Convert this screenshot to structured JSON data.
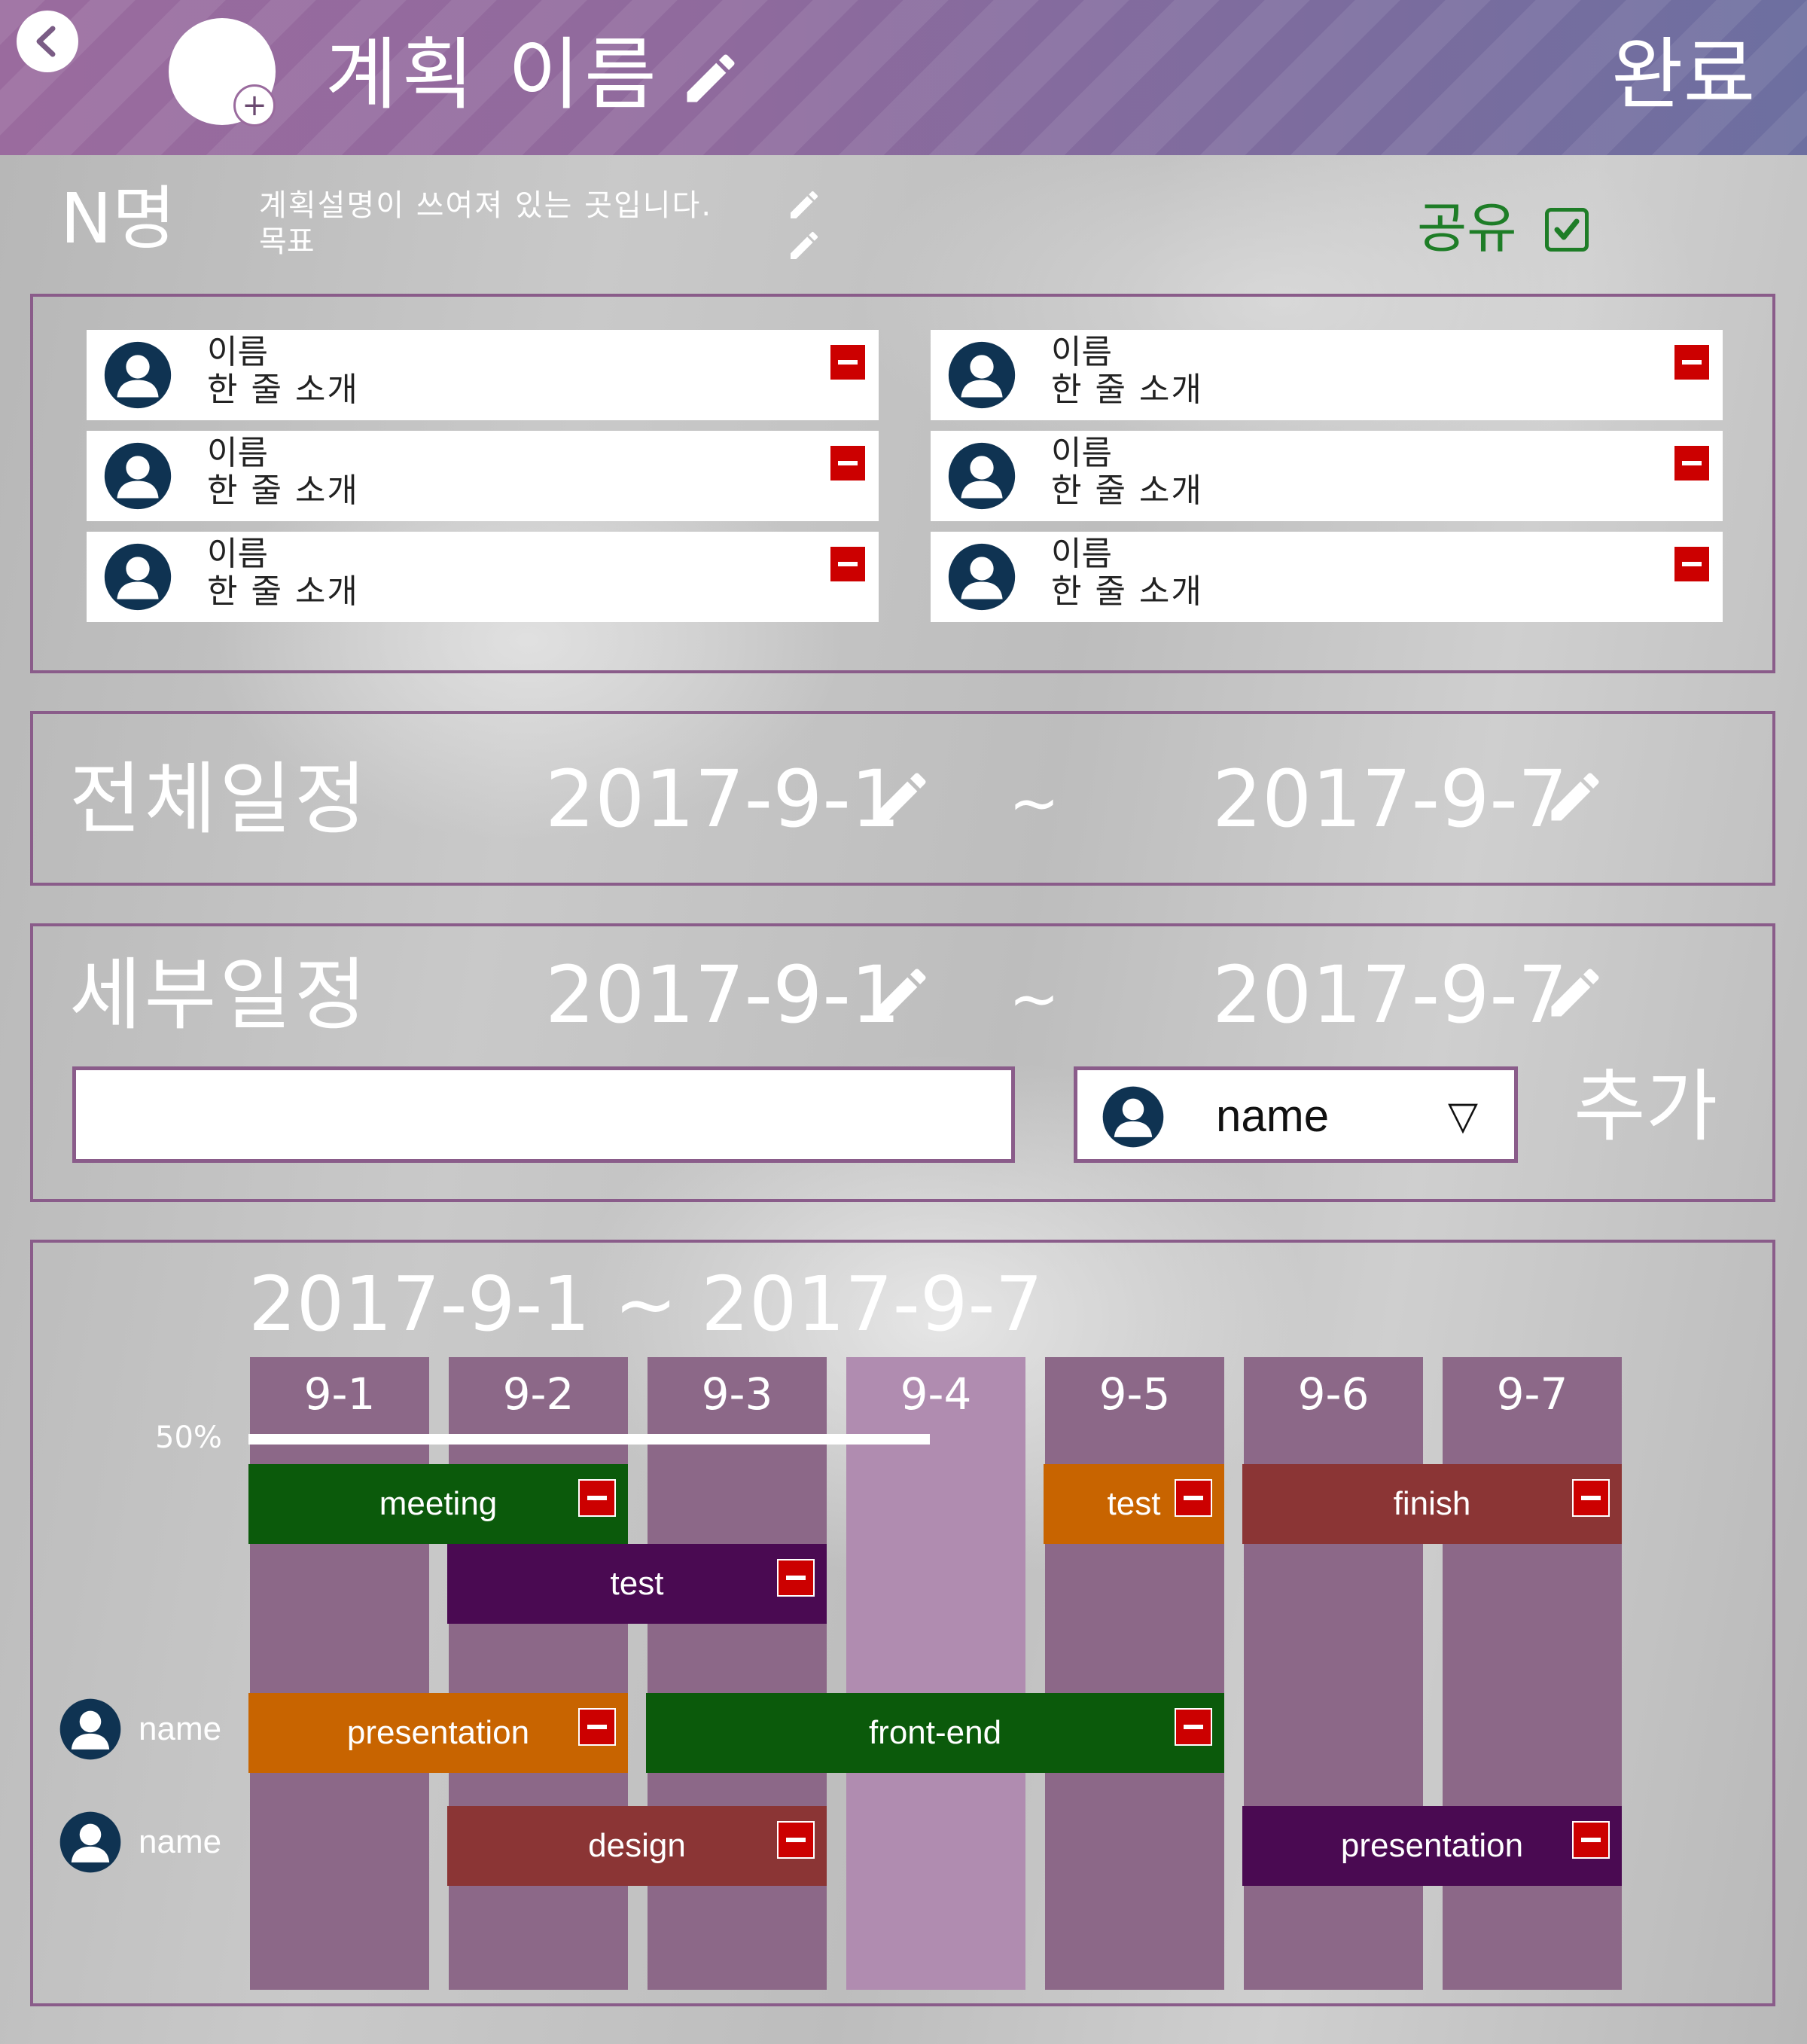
{
  "header": {
    "title": "계획 이름",
    "done_label": "완료",
    "back_icon": "chevron-left-icon",
    "edit_icon": "pencil-icon"
  },
  "summary": {
    "member_count": "N명",
    "description": "계획설명이 쓰여져 있는 곳입니다.",
    "goal": "목표",
    "share_label": "공유",
    "share_checked": true
  },
  "members": [
    {
      "name": "이름",
      "intro": "한 줄 소개"
    },
    {
      "name": "이름",
      "intro": "한 줄 소개"
    },
    {
      "name": "이름",
      "intro": "한 줄 소개"
    },
    {
      "name": "이름",
      "intro": "한 줄 소개"
    },
    {
      "name": "이름",
      "intro": "한 줄 소개"
    },
    {
      "name": "이름",
      "intro": "한 줄 소개"
    }
  ],
  "total_schedule": {
    "label": "전체일정",
    "start": "2017-9-1",
    "tilde": "~",
    "end": "2017-9-7"
  },
  "detail_schedule": {
    "label": "세부일정",
    "start": "2017-9-1",
    "tilde": "~",
    "end": "2017-9-7",
    "task_input_value": "",
    "assignee": "name",
    "dropdown_arrow": "▽",
    "add_label": "추가"
  },
  "timeline": {
    "range": "2017-9-1 ~ 2017-9-7",
    "days": [
      "9-1",
      "9-2",
      "9-3",
      "9-4",
      "9-5",
      "9-6",
      "9-7"
    ],
    "today_index": 3,
    "progress_label": "50%",
    "progress_value": 0.5,
    "task_rows": [
      {
        "assignee": "",
        "tasks": [
          {
            "label": "meeting",
            "start": 0,
            "span": 2,
            "lane": 0,
            "color": "#0b5a0b"
          },
          {
            "label": "test",
            "start": 4,
            "span": 1,
            "lane": 0,
            "color": "#c86400"
          },
          {
            "label": "finish",
            "start": 5,
            "span": 2,
            "lane": 0,
            "color": "#8b3535"
          },
          {
            "label": "test",
            "start": 1,
            "span": 2,
            "lane": 1,
            "color": "#4a0a52"
          }
        ]
      },
      {
        "assignee": "name",
        "tasks": [
          {
            "label": "presentation",
            "start": 0,
            "span": 2,
            "lane": 0,
            "color": "#c86400"
          },
          {
            "label": "front-end",
            "start": 2,
            "span": 3,
            "lane": 0,
            "color": "#0b5a0b"
          }
        ]
      },
      {
        "assignee": "name",
        "tasks": [
          {
            "label": "design",
            "start": 1,
            "span": 2,
            "lane": 0,
            "color": "#8b3535"
          },
          {
            "label": "presentation",
            "start": 5,
            "span": 2,
            "lane": 0,
            "color": "#4a0a52"
          }
        ]
      }
    ]
  },
  "colors": {
    "accent": "#8a5c8a",
    "share_green": "#1e7d27",
    "remove_red": "#cc0000",
    "avatar_navy": "#0f3352"
  }
}
